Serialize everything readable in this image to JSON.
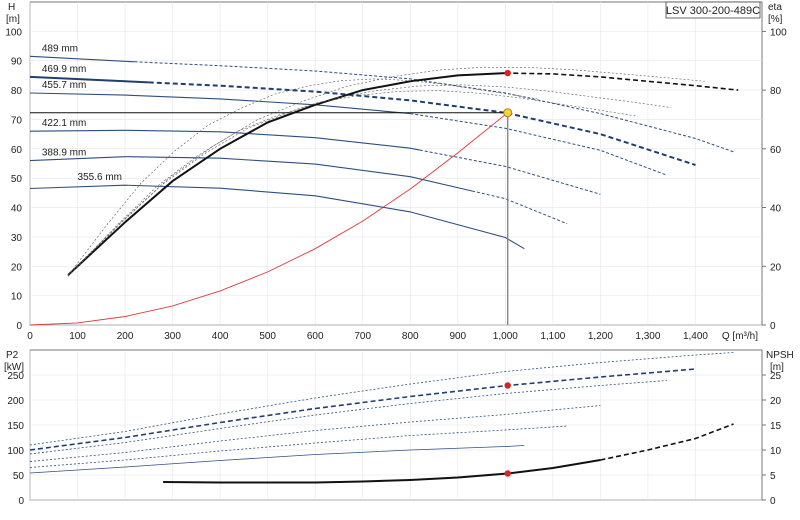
{
  "model_label": "LSV 300-200-489C",
  "chart_data": [
    {
      "type": "line",
      "panel": "head-efficiency",
      "ylabel_top": "H",
      "ylabel_unit": "[m]",
      "y2label_top": "eta",
      "y2label_unit": "[%]",
      "xlabel": "Q [m³/h]",
      "xlim": [
        0,
        1540
      ],
      "ylim": [
        0,
        110
      ],
      "y2lim": [
        0,
        110
      ],
      "x_ticks": [
        "0",
        "100",
        "200",
        "300",
        "400",
        "500",
        "600",
        "700",
        "800",
        "900",
        "1,000",
        "1,100",
        "1,200",
        "1,300",
        "1,400"
      ],
      "x_tick_values": [
        0,
        100,
        200,
        300,
        400,
        500,
        600,
        700,
        800,
        900,
        1000,
        1100,
        1200,
        1300,
        1400
      ],
      "y_ticks": [
        0,
        10,
        20,
        30,
        40,
        50,
        60,
        70,
        80,
        90,
        100
      ],
      "y2_ticks": [
        0,
        20,
        40,
        60,
        80,
        100
      ],
      "grid": true,
      "head_curves": [
        {
          "name": "489 mm",
          "points": [
            [
              0,
              91.5
            ],
            [
              200,
              89.8
            ],
            [
              400,
              88.3
            ],
            [
              600,
              86.5
            ],
            [
              800,
              83.8
            ],
            [
              1000,
              79.0
            ],
            [
              1200,
              72.0
            ],
            [
              1400,
              63.5
            ],
            [
              1480,
              59.0
            ]
          ],
          "solid_until": 220
        },
        {
          "name": "469.9 mm",
          "points": [
            [
              0,
              84.5
            ],
            [
              200,
              83.0
            ],
            [
              400,
              81.5
            ],
            [
              600,
              79.5
            ],
            [
              800,
              76.5
            ],
            [
              1000,
              72.3
            ],
            [
              1200,
              65.0
            ],
            [
              1400,
              54.5
            ]
          ],
          "solid_until": 250
        },
        {
          "name": "455.7 mm",
          "points": [
            [
              0,
              79.0
            ],
            [
              200,
              78.3
            ],
            [
              400,
              77.0
            ],
            [
              600,
              75.0
            ],
            [
              800,
              72.0
            ],
            [
              1000,
              67.0
            ],
            [
              1200,
              59.5
            ],
            [
              1340,
              51.0
            ]
          ],
          "solid_until": 800
        },
        {
          "name": "422.1 mm",
          "points": [
            [
              0,
              66.0
            ],
            [
              200,
              66.3
            ],
            [
              400,
              65.8
            ],
            [
              600,
              63.8
            ],
            [
              800,
              60.2
            ],
            [
              1000,
              54.0
            ],
            [
              1200,
              44.5
            ]
          ],
          "solid_until": 820
        },
        {
          "name": "388.9 mm",
          "points": [
            [
              0,
              56.0
            ],
            [
              200,
              57.3
            ],
            [
              400,
              56.8
            ],
            [
              600,
              54.8
            ],
            [
              800,
              50.5
            ],
            [
              1000,
              43.0
            ],
            [
              1130,
              34.5
            ]
          ],
          "solid_until": 930
        },
        {
          "name": "355.6 mm",
          "points": [
            [
              0,
              46.5
            ],
            [
              200,
              47.6
            ],
            [
              400,
              46.6
            ],
            [
              600,
              44.0
            ],
            [
              800,
              38.5
            ],
            [
              1000,
              29.8
            ],
            [
              1040,
              26.0
            ]
          ],
          "solid_until": 1040
        }
      ],
      "efficiency_curves": [
        {
          "name": "eta",
          "points": [
            [
              80,
              17
            ],
            [
              200,
              35
            ],
            [
              300,
              49
            ],
            [
              400,
              60
            ],
            [
              500,
              69
            ],
            [
              600,
              75
            ],
            [
              700,
              80
            ],
            [
              800,
              83
            ],
            [
              900,
              85
            ],
            [
              1000,
              85.8
            ],
            [
              1100,
              85.5
            ],
            [
              1200,
              84.5
            ],
            [
              1300,
              83
            ],
            [
              1400,
              81.5
            ],
            [
              1490,
              80
            ]
          ],
          "solid_until": 1000
        }
      ],
      "system_curve": {
        "points": [
          [
            0,
            0
          ],
          [
            100,
            0.7
          ],
          [
            200,
            2.9
          ],
          [
            300,
            6.5
          ],
          [
            400,
            11.6
          ],
          [
            500,
            18.1
          ],
          [
            600,
            26.0
          ],
          [
            700,
            35.4
          ],
          [
            800,
            46.3
          ],
          [
            900,
            58.6
          ],
          [
            1005,
            72.3
          ]
        ]
      },
      "duty_point": {
        "x": 1005,
        "head": 72.3,
        "eta": 85.8
      }
    },
    {
      "type": "line",
      "panel": "power-npsh",
      "ylabel_top": "P2",
      "ylabel_unit": "[kW]",
      "y2label_top": "NPSH",
      "y2label_unit": "[m]",
      "ylim": [
        0,
        300
      ],
      "y2lim": [
        0,
        30
      ],
      "y_ticks": [
        0,
        50,
        100,
        150,
        200,
        250
      ],
      "y2_ticks": [
        0,
        5,
        10,
        15,
        20,
        25
      ],
      "grid": true,
      "power_curves": [
        {
          "name": "489 mm",
          "points": [
            [
              0,
              110
            ],
            [
              200,
              137
            ],
            [
              400,
              172
            ],
            [
              600,
              204
            ],
            [
              800,
              232
            ],
            [
              1000,
              257
            ],
            [
              1200,
              275
            ],
            [
              1400,
              290
            ],
            [
              1480,
              295
            ]
          ]
        },
        {
          "name": "469.9 mm",
          "points": [
            [
              0,
              100
            ],
            [
              200,
              125
            ],
            [
              400,
              155
            ],
            [
              600,
              183
            ],
            [
              800,
              207
            ],
            [
              1005,
              229
            ],
            [
              1200,
              246
            ],
            [
              1400,
              262
            ]
          ]
        },
        {
          "name": "455.7 mm",
          "points": [
            [
              0,
              92
            ],
            [
              200,
              115
            ],
            [
              400,
              143
            ],
            [
              600,
              170
            ],
            [
              800,
              193
            ],
            [
              1000,
              213
            ],
            [
              1200,
              229
            ],
            [
              1340,
              239
            ]
          ]
        },
        {
          "name": "422.1 mm",
          "points": [
            [
              0,
              77
            ],
            [
              200,
              95
            ],
            [
              400,
              118
            ],
            [
              600,
              139
            ],
            [
              800,
              156
            ],
            [
              1000,
              171
            ],
            [
              1200,
              189
            ]
          ]
        },
        {
          "name": "388.9 mm",
          "points": [
            [
              0,
              65
            ],
            [
              200,
              80
            ],
            [
              400,
              98
            ],
            [
              600,
              114
            ],
            [
              800,
              129
            ],
            [
              1000,
              140
            ],
            [
              1130,
              148
            ]
          ]
        },
        {
          "name": "355.6 mm",
          "points": [
            [
              0,
              54
            ],
            [
              200,
              66
            ],
            [
              400,
              79
            ],
            [
              600,
              91
            ],
            [
              800,
              100
            ],
            [
              1000,
              107
            ],
            [
              1040,
              109
            ]
          ]
        }
      ],
      "npsh_curve": {
        "name": "NPSH",
        "points": [
          [
            280,
            3.6
          ],
          [
            400,
            3.5
          ],
          [
            500,
            3.5
          ],
          [
            600,
            3.5
          ],
          [
            700,
            3.7
          ],
          [
            800,
            4.0
          ],
          [
            900,
            4.5
          ],
          [
            1005,
            5.3
          ],
          [
            1100,
            6.4
          ],
          [
            1200,
            8.0
          ],
          [
            1300,
            10.0
          ],
          [
            1400,
            12.3
          ],
          [
            1480,
            15.2
          ]
        ],
        "solid_until": 1200
      },
      "duty_point": {
        "x": 1005,
        "power": 229,
        "npsh": 5.3
      }
    }
  ]
}
